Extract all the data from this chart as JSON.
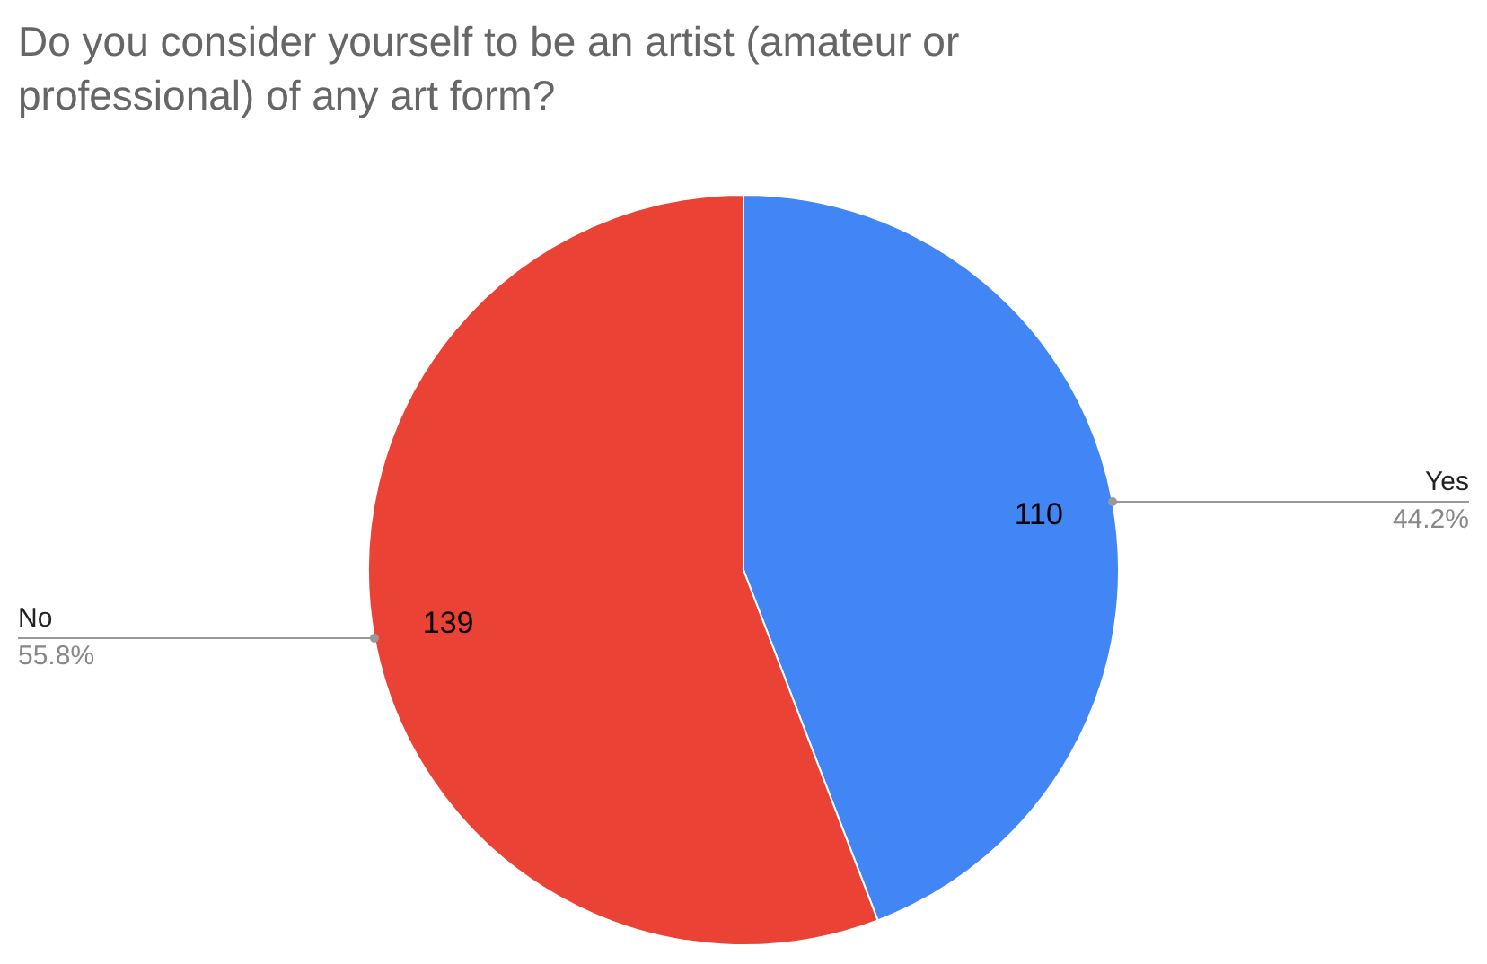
{
  "chart_data": {
    "type": "pie",
    "title": "Do you consider yourself to be an artist (amateur or professional) of any art form?",
    "categories": [
      "Yes",
      "No"
    ],
    "values": [
      110,
      139
    ],
    "colors": [
      "#4285f4",
      "#ea4335"
    ],
    "data_labels": true,
    "annotations": [
      {
        "text": "44.2%",
        "x": "Yes"
      },
      {
        "text": "55.8%",
        "x": "No"
      }
    ],
    "legend": false
  }
}
